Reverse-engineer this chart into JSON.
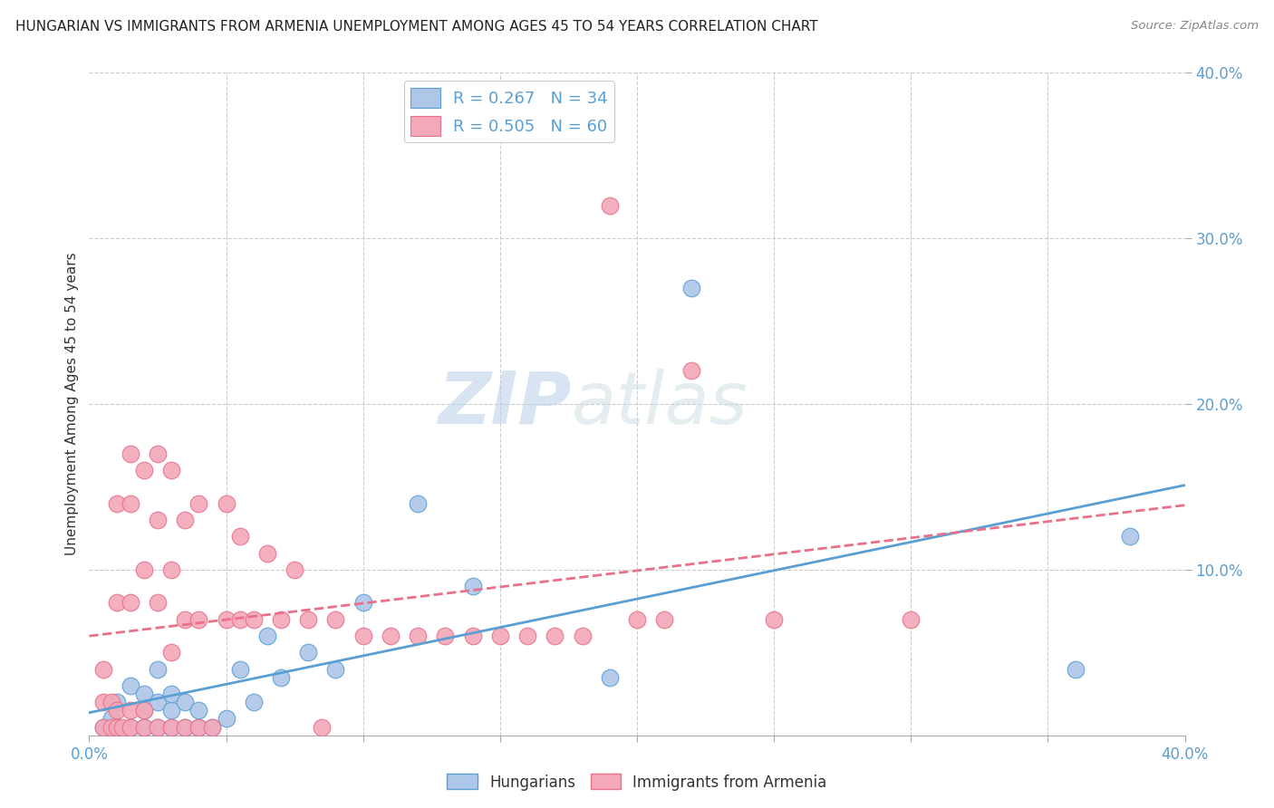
{
  "title": "HUNGARIAN VS IMMIGRANTS FROM ARMENIA UNEMPLOYMENT AMONG AGES 45 TO 54 YEARS CORRELATION CHART",
  "source": "Source: ZipAtlas.com",
  "ylabel": "Unemployment Among Ages 45 to 54 years",
  "xlim": [
    0.0,
    0.4
  ],
  "ylim": [
    0.0,
    0.4
  ],
  "hungarian_R": 0.267,
  "hungarian_N": 34,
  "armenia_R": 0.505,
  "armenia_N": 60,
  "hungarian_color": "#aec6e8",
  "armenia_color": "#f4a8b8",
  "hungarian_edge_color": "#5a9fd4",
  "armenia_edge_color": "#e8708a",
  "hungarian_line_color": "#5a9fd4",
  "armenia_line_color": "#e8708a",
  "legend_label_hungarian": "Hungarians",
  "legend_label_armenia": "Immigrants from Armenia",
  "watermark_zip": "ZIP",
  "watermark_atlas": "atlas",
  "hungarian_x": [
    0.005,
    0.008,
    0.01,
    0.01,
    0.015,
    0.015,
    0.02,
    0.02,
    0.02,
    0.025,
    0.025,
    0.025,
    0.03,
    0.03,
    0.03,
    0.035,
    0.035,
    0.04,
    0.04,
    0.045,
    0.05,
    0.055,
    0.06,
    0.065,
    0.07,
    0.08,
    0.09,
    0.1,
    0.12,
    0.14,
    0.19,
    0.22,
    0.36,
    0.38
  ],
  "hungarian_y": [
    0.005,
    0.01,
    0.005,
    0.02,
    0.005,
    0.03,
    0.005,
    0.015,
    0.025,
    0.005,
    0.02,
    0.04,
    0.005,
    0.015,
    0.025,
    0.005,
    0.02,
    0.005,
    0.015,
    0.005,
    0.01,
    0.04,
    0.02,
    0.06,
    0.035,
    0.05,
    0.04,
    0.08,
    0.14,
    0.09,
    0.035,
    0.27,
    0.04,
    0.12
  ],
  "armenia_x": [
    0.005,
    0.005,
    0.005,
    0.008,
    0.008,
    0.01,
    0.01,
    0.01,
    0.01,
    0.012,
    0.015,
    0.015,
    0.015,
    0.015,
    0.015,
    0.02,
    0.02,
    0.02,
    0.02,
    0.025,
    0.025,
    0.025,
    0.025,
    0.03,
    0.03,
    0.03,
    0.03,
    0.035,
    0.035,
    0.035,
    0.04,
    0.04,
    0.04,
    0.045,
    0.05,
    0.05,
    0.055,
    0.055,
    0.06,
    0.065,
    0.07,
    0.075,
    0.08,
    0.085,
    0.09,
    0.1,
    0.11,
    0.12,
    0.13,
    0.14,
    0.15,
    0.16,
    0.17,
    0.18,
    0.19,
    0.2,
    0.21,
    0.22,
    0.25,
    0.3
  ],
  "armenia_y": [
    0.005,
    0.02,
    0.04,
    0.005,
    0.02,
    0.005,
    0.015,
    0.08,
    0.14,
    0.005,
    0.005,
    0.015,
    0.08,
    0.14,
    0.17,
    0.005,
    0.015,
    0.1,
    0.16,
    0.005,
    0.08,
    0.13,
    0.17,
    0.005,
    0.05,
    0.1,
    0.16,
    0.005,
    0.07,
    0.13,
    0.005,
    0.07,
    0.14,
    0.005,
    0.07,
    0.14,
    0.07,
    0.12,
    0.07,
    0.11,
    0.07,
    0.1,
    0.07,
    0.005,
    0.07,
    0.06,
    0.06,
    0.06,
    0.06,
    0.06,
    0.06,
    0.06,
    0.06,
    0.06,
    0.32,
    0.07,
    0.07,
    0.22,
    0.07,
    0.07
  ]
}
